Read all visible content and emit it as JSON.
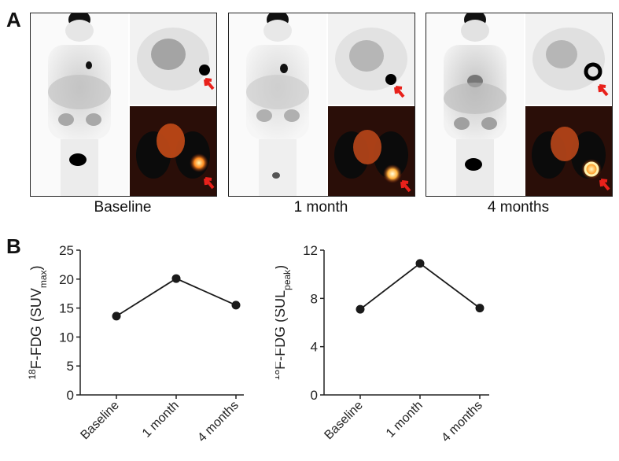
{
  "panel_a": {
    "letter": "A",
    "timepoints": [
      {
        "label": "Baseline"
      },
      {
        "label": "1 month"
      },
      {
        "label": "4 months"
      }
    ],
    "colors": {
      "arrow": "#e8211b",
      "scan_bg": "#000000",
      "fusion": "#ff7a1a"
    }
  },
  "panel_b": {
    "letter": "B"
  },
  "chart_data": [
    {
      "type": "line",
      "title": "",
      "ylabel_base": "F-FDG (SUV",
      "ylabel_prefix": "18",
      "ylabel_sub": "max",
      "ylabel_end": ")",
      "categories": [
        "Baseline",
        "1 month",
        "4 months"
      ],
      "values": [
        13.6,
        20.1,
        15.5
      ],
      "ylim": [
        0,
        25
      ],
      "yticks": [
        0,
        5,
        10,
        15,
        20,
        25
      ],
      "color": "#1a1a1a"
    },
    {
      "type": "line",
      "title": "",
      "ylabel_base": "F-FDG (SUL",
      "ylabel_prefix": "18",
      "ylabel_sub": "peak",
      "ylabel_end": ")",
      "categories": [
        "Baseline",
        "1 month",
        "4 months"
      ],
      "values": [
        7.1,
        10.9,
        7.2
      ],
      "ylim": [
        0,
        12
      ],
      "yticks": [
        0,
        4,
        8,
        12
      ],
      "color": "#1a1a1a"
    }
  ]
}
